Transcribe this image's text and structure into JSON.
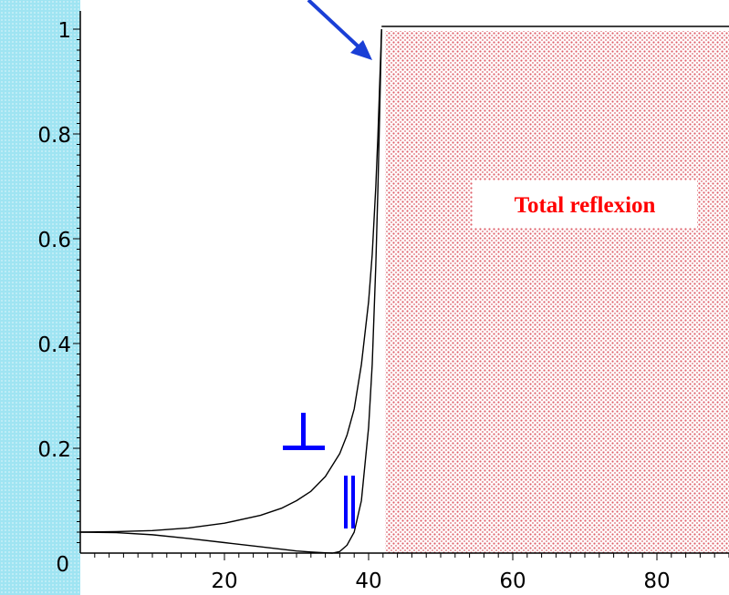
{
  "chart_data": {
    "type": "line",
    "title": "",
    "xlabel": "",
    "ylabel": "",
    "xlim": [
      0,
      90
    ],
    "ylim": [
      0,
      1
    ],
    "x_ticks": [
      20,
      40,
      60,
      80
    ],
    "y_ticks": [
      0.2,
      0.4,
      0.6,
      0.8,
      1
    ],
    "x_tick_labels": [
      "20",
      "40",
      "60",
      "80"
    ],
    "y_tick_labels": [
      "0.2",
      "0.4",
      "0.6",
      "0.8",
      "1"
    ],
    "origin_label": "0",
    "grid": false,
    "legend": "none",
    "series": [
      {
        "name": "⊥",
        "x": [
          0,
          5,
          10,
          15,
          20,
          25,
          28,
          30,
          32,
          34,
          36,
          37,
          38,
          39,
          40,
          40.5,
          41,
          41.3,
          41.5,
          41.8
        ],
        "y": [
          0.04,
          0.041,
          0.043,
          0.048,
          0.057,
          0.072,
          0.086,
          0.1,
          0.118,
          0.146,
          0.19,
          0.225,
          0.275,
          0.36,
          0.48,
          0.57,
          0.7,
          0.8,
          0.88,
          1.0
        ]
      },
      {
        "name": "∥",
        "x": [
          0,
          5,
          10,
          15,
          20,
          25,
          30,
          32,
          34,
          35,
          36,
          37,
          38,
          39,
          40,
          40.5,
          41,
          41.3,
          41.5,
          41.8
        ],
        "y": [
          0.04,
          0.039,
          0.035,
          0.028,
          0.02,
          0.012,
          0.004,
          0.002,
          0.0005,
          0.0,
          0.003,
          0.015,
          0.04,
          0.1,
          0.24,
          0.36,
          0.55,
          0.7,
          0.82,
          1.0
        ]
      }
    ],
    "total_reflection": {
      "label": "Total reflexion",
      "x_start": 41.8,
      "x_end": 90,
      "y": 1.0,
      "fill_color": "#e0606a",
      "label_color": "#ff0000"
    },
    "annotations": {
      "perp_symbol": "⊥",
      "parallel_symbol": "‖",
      "symbol_color": "#0000ff",
      "arrow_color": "#1a3fd6"
    }
  }
}
